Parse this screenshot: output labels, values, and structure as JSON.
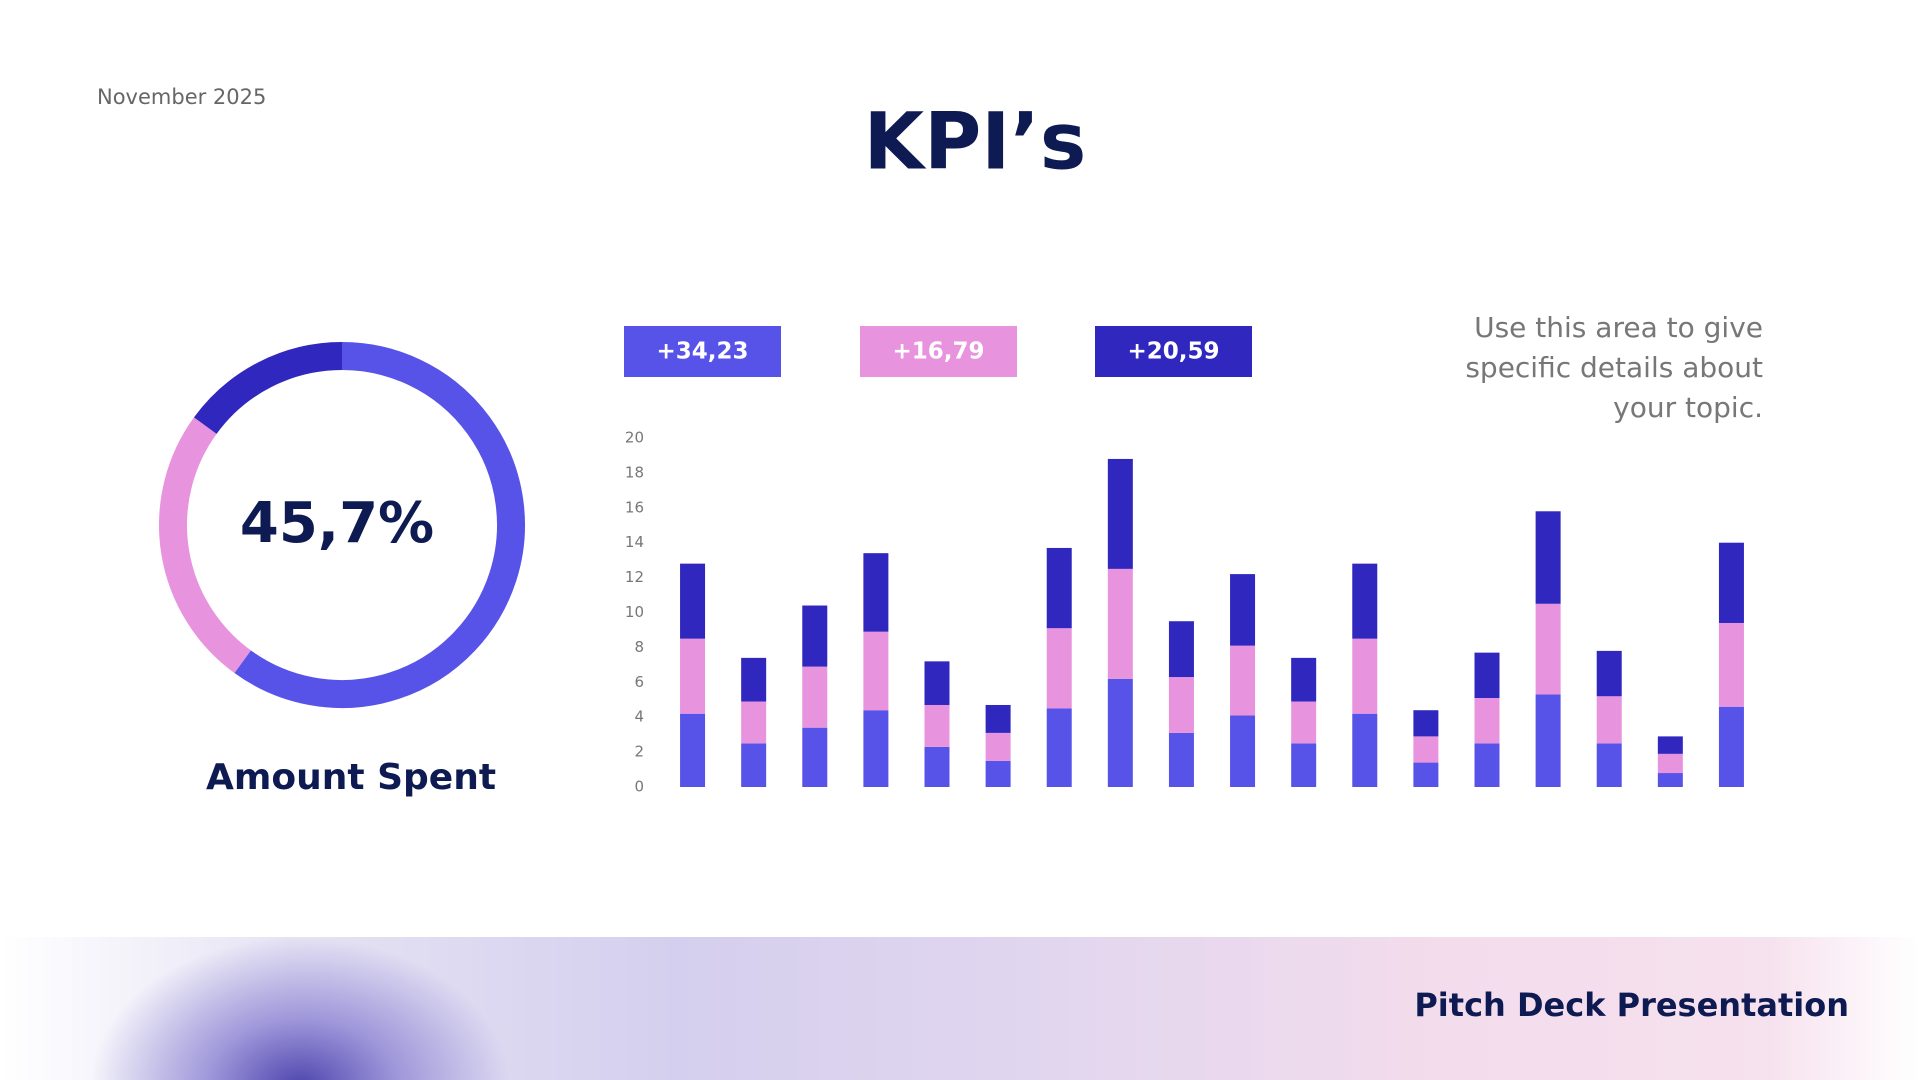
{
  "date": "November 2025",
  "title": "KPI’s",
  "description": [
    "Use this area to give",
    "specific details about",
    "your topic."
  ],
  "footer": "Pitch Deck Presentation",
  "chart_data": [
    {
      "type": "donut",
      "title": "Amount Spent",
      "center_label": "45,7%",
      "values": [
        60,
        25,
        15
      ],
      "colors": [
        "#5753e8",
        "#e793de",
        "#2f27be"
      ]
    },
    {
      "type": "stacked-bar",
      "categories": [
        null,
        null,
        null,
        null,
        null,
        null,
        null,
        null,
        null,
        null,
        null,
        null,
        null,
        null,
        null,
        null,
        null,
        null
      ],
      "series": [
        {
          "name": "+34,23",
          "color": "#5753e8",
          "values": [
            4.2,
            2.5,
            3.4,
            4.4,
            2.3,
            1.5,
            4.5,
            6.2,
            3.1,
            4.1,
            2.5,
            4.2,
            1.4,
            2.5,
            5.3,
            2.5,
            0.8,
            4.6
          ]
        },
        {
          "name": "+16,79",
          "color": "#e793de",
          "values": [
            4.3,
            2.4,
            3.5,
            4.5,
            2.4,
            1.6,
            4.6,
            6.3,
            3.2,
            4.0,
            2.4,
            4.3,
            1.5,
            2.6,
            5.2,
            2.7,
            1.1,
            4.8
          ]
        },
        {
          "name": "+20,59",
          "color": "#2f27be",
          "values": [
            4.3,
            2.5,
            3.5,
            4.5,
            2.5,
            1.6,
            4.6,
            6.3,
            3.2,
            4.1,
            2.5,
            4.3,
            1.5,
            2.6,
            5.3,
            2.6,
            1.0,
            4.6
          ]
        }
      ],
      "ylim": [
        0,
        20
      ],
      "yticks": [
        0,
        2,
        4,
        6,
        8,
        10,
        12,
        14,
        16,
        18,
        20
      ],
      "grid": false
    }
  ]
}
